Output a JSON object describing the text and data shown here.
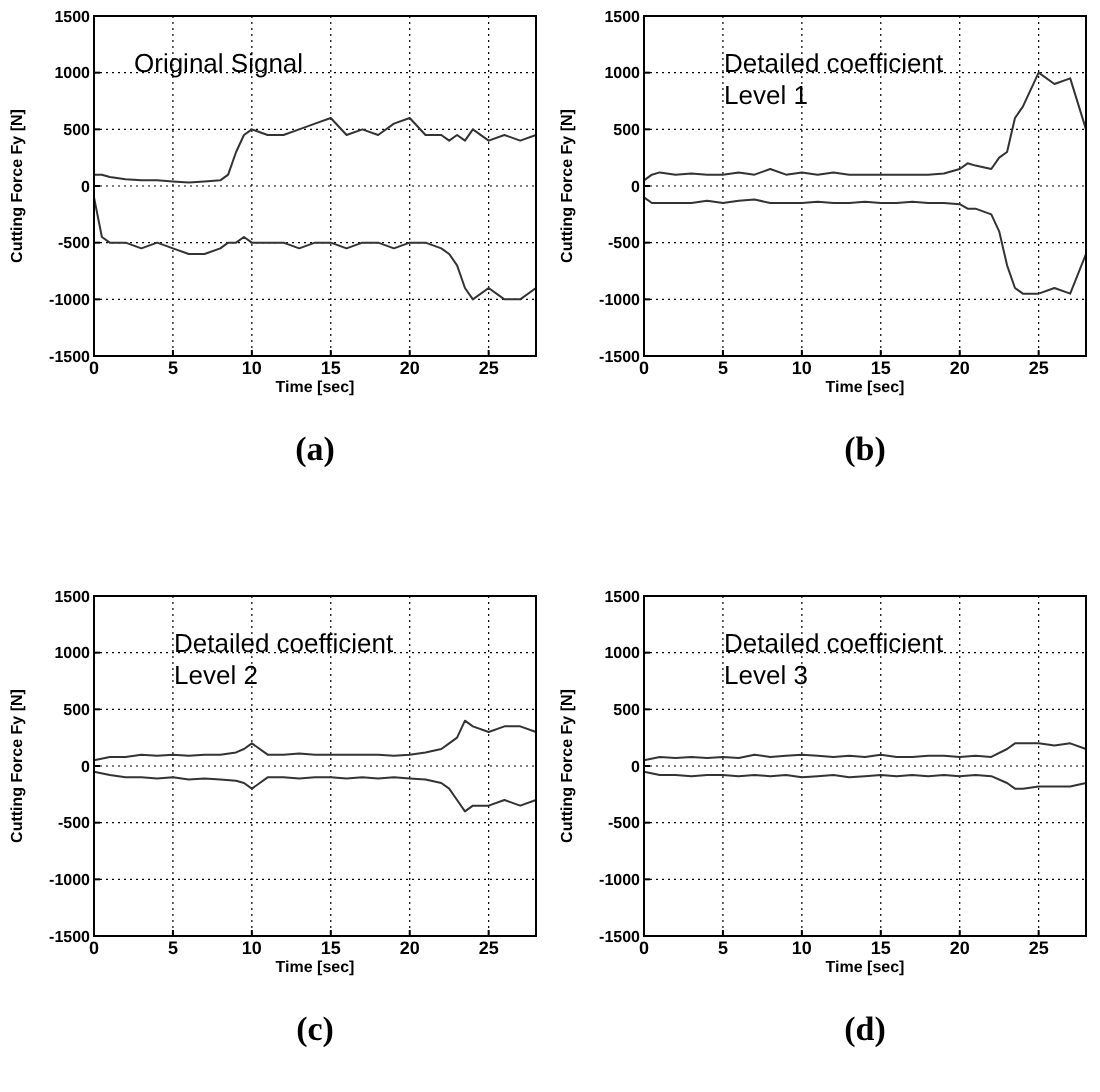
{
  "chart_data": [
    {
      "type": "line",
      "title": "Original Signal",
      "xlabel": "Time [sec]",
      "ylabel": "Cutting Force Fy [N]",
      "annotations": [
        "(a)"
      ],
      "xlim": [
        0,
        28
      ],
      "ylim": [
        -1500,
        1500
      ],
      "xticks": [
        0,
        5,
        10,
        15,
        20,
        25
      ],
      "yticks": [
        -1500,
        -1000,
        -500,
        0,
        500,
        1000,
        1500
      ],
      "grid": true,
      "x": [
        0,
        0.5,
        1,
        2,
        3,
        4,
        5,
        6,
        7,
        8,
        8.5,
        9,
        9.5,
        10,
        11,
        12,
        13,
        14,
        15,
        16,
        17,
        18,
        19,
        20,
        21,
        22,
        22.5,
        23,
        23.5,
        24,
        25,
        26,
        27,
        28
      ],
      "series": [
        {
          "color": "#333333",
          "values": [
            100,
            100,
            80,
            60,
            50,
            50,
            40,
            30,
            40,
            50,
            100,
            300,
            450,
            500,
            450,
            450,
            500,
            550,
            600,
            450,
            500,
            450,
            550,
            600,
            450,
            450,
            400,
            450,
            400,
            500,
            400,
            450,
            400,
            450
          ]
        },
        {
          "color": "#333333",
          "values": [
            -100,
            -450,
            -500,
            -500,
            -550,
            -500,
            -550,
            -600,
            -600,
            -550,
            -500,
            -500,
            -450,
            -500,
            -500,
            -500,
            -550,
            -500,
            -500,
            -550,
            -500,
            -500,
            -550,
            -500,
            -500,
            -550,
            -600,
            -700,
            -900,
            -1000,
            -900,
            -1000,
            -1000,
            -900
          ]
        }
      ]
    },
    {
      "type": "line",
      "title": "Detailed coefficient\nLevel 1",
      "xlabel": "Time [sec]",
      "ylabel": "Cutting Force Fy [N]",
      "annotations": [
        "(b)"
      ],
      "xlim": [
        0,
        28
      ],
      "ylim": [
        -1500,
        1500
      ],
      "xticks": [
        0,
        5,
        10,
        15,
        20,
        25
      ],
      "yticks": [
        -1500,
        -1000,
        -500,
        0,
        500,
        1000,
        1500
      ],
      "grid": true,
      "x": [
        0,
        0.5,
        1,
        2,
        3,
        4,
        5,
        6,
        7,
        8,
        9,
        10,
        11,
        12,
        13,
        14,
        15,
        16,
        17,
        18,
        19,
        20,
        20.5,
        21,
        22,
        22.5,
        23,
        23.5,
        24,
        25,
        26,
        27,
        28
      ],
      "series": [
        {
          "color": "#333333",
          "values": [
            50,
            100,
            120,
            100,
            110,
            100,
            100,
            120,
            100,
            150,
            100,
            120,
            100,
            120,
            100,
            100,
            100,
            100,
            100,
            100,
            110,
            150,
            200,
            180,
            150,
            250,
            300,
            600,
            700,
            1000,
            900,
            950,
            500
          ]
        },
        {
          "color": "#333333",
          "values": [
            -100,
            -150,
            -150,
            -150,
            -150,
            -130,
            -150,
            -130,
            -120,
            -150,
            -150,
            -150,
            -140,
            -150,
            -150,
            -140,
            -150,
            -150,
            -140,
            -150,
            -150,
            -160,
            -200,
            -200,
            -250,
            -400,
            -700,
            -900,
            -950,
            -950,
            -900,
            -950,
            -600
          ]
        }
      ]
    },
    {
      "type": "line",
      "title": "Detailed coefficient\nLevel 2",
      "xlabel": "Time [sec]",
      "ylabel": "Cutting Force Fy [N]",
      "annotations": [
        "(c)"
      ],
      "xlim": [
        0,
        28
      ],
      "ylim": [
        -1500,
        1500
      ],
      "xticks": [
        0,
        5,
        10,
        15,
        20,
        25
      ],
      "yticks": [
        -1500,
        -1000,
        -500,
        0,
        500,
        1000,
        1500
      ],
      "grid": true,
      "x": [
        0,
        1,
        2,
        3,
        4,
        5,
        6,
        7,
        8,
        9,
        9.5,
        10,
        11,
        12,
        13,
        14,
        15,
        16,
        17,
        18,
        19,
        20,
        21,
        22,
        22.5,
        23,
        23.5,
        24,
        25,
        26,
        27,
        28
      ],
      "series": [
        {
          "color": "#333333",
          "values": [
            50,
            80,
            80,
            100,
            90,
            100,
            90,
            100,
            100,
            120,
            150,
            200,
            100,
            100,
            110,
            100,
            100,
            100,
            100,
            100,
            90,
            100,
            120,
            150,
            200,
            250,
            400,
            350,
            300,
            350,
            350,
            300
          ]
        },
        {
          "color": "#333333",
          "values": [
            -50,
            -80,
            -100,
            -100,
            -110,
            -100,
            -120,
            -110,
            -120,
            -130,
            -150,
            -200,
            -100,
            -100,
            -110,
            -100,
            -100,
            -110,
            -100,
            -110,
            -100,
            -110,
            -120,
            -150,
            -200,
            -300,
            -400,
            -350,
            -350,
            -300,
            -350,
            -300
          ]
        }
      ]
    },
    {
      "type": "line",
      "title": "Detailed coefficient\nLevel 3",
      "xlabel": "Time [sec]",
      "ylabel": "Cutting Force Fy [N]",
      "annotations": [
        "(d)"
      ],
      "xlim": [
        0,
        28
      ],
      "ylim": [
        -1500,
        1500
      ],
      "xticks": [
        0,
        5,
        10,
        15,
        20,
        25
      ],
      "yticks": [
        -1500,
        -1000,
        -500,
        0,
        500,
        1000,
        1500
      ],
      "grid": true,
      "x": [
        0,
        1,
        2,
        3,
        4,
        5,
        6,
        7,
        8,
        9,
        10,
        11,
        12,
        13,
        14,
        15,
        16,
        17,
        18,
        19,
        20,
        21,
        22,
        23,
        23.5,
        24,
        25,
        26,
        27,
        28
      ],
      "series": [
        {
          "color": "#333333",
          "values": [
            50,
            80,
            70,
            80,
            70,
            80,
            70,
            100,
            80,
            90,
            100,
            90,
            80,
            90,
            80,
            100,
            80,
            80,
            90,
            90,
            80,
            90,
            80,
            150,
            200,
            200,
            200,
            180,
            200,
            150
          ]
        },
        {
          "color": "#333333",
          "values": [
            -50,
            -80,
            -80,
            -90,
            -80,
            -80,
            -90,
            -80,
            -90,
            -80,
            -100,
            -90,
            -80,
            -100,
            -90,
            -80,
            -90,
            -80,
            -90,
            -80,
            -90,
            -80,
            -90,
            -150,
            -200,
            -200,
            -180,
            -180,
            -180,
            -150
          ]
        }
      ]
    }
  ]
}
